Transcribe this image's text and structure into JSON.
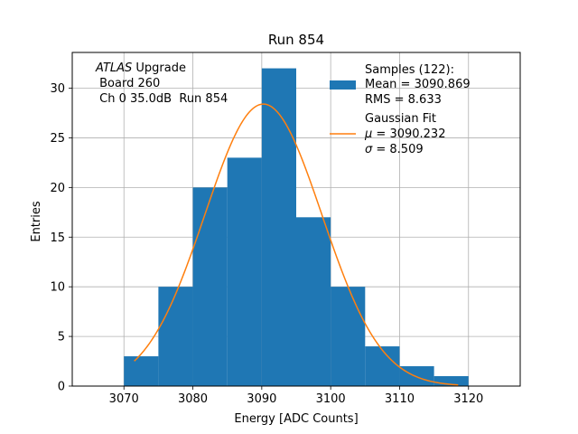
{
  "chart_data": {
    "type": "bar",
    "title": "Run 854",
    "xlabel": "Energy [ADC Counts]",
    "ylabel": "Entries",
    "xlim": [
      3062.5,
      3127.5
    ],
    "ylim": [
      0,
      33.6
    ],
    "xticks": [
      3070,
      3080,
      3090,
      3100,
      3110,
      3120
    ],
    "yticks": [
      0,
      5,
      10,
      15,
      20,
      25,
      30
    ],
    "grid": true,
    "bins": [
      {
        "x0": 3070,
        "x1": 3075,
        "count": 3
      },
      {
        "x0": 3075,
        "x1": 3080,
        "count": 10
      },
      {
        "x0": 3080,
        "x1": 3085,
        "count": 20
      },
      {
        "x0": 3085,
        "x1": 3090,
        "count": 23
      },
      {
        "x0": 3090,
        "x1": 3095,
        "count": 32
      },
      {
        "x0": 3095,
        "x1": 3100,
        "count": 17
      },
      {
        "x0": 3100,
        "x1": 3105,
        "count": 10
      },
      {
        "x0": 3105,
        "x1": 3110,
        "count": 4
      },
      {
        "x0": 3110,
        "x1": 3115,
        "count": 2
      },
      {
        "x0": 3115,
        "x1": 3120,
        "count": 1
      }
    ],
    "fit": {
      "type": "gaussian",
      "mu": 3090.232,
      "sigma": 8.509,
      "amplitude": 28.4,
      "x_range": [
        3071.5,
        3118.5
      ]
    },
    "bar_color": "#1f77b4",
    "fit_color": "#ff7f0e",
    "annotation": {
      "experiment": "ATLAS",
      "experiment_suffix": " Upgrade",
      "board": " Board 260",
      "channel": " Ch 0 35.0dB  Run 854"
    },
    "legend": {
      "position": "upper-right",
      "samples_label": "Samples (122):",
      "samples_mean": "Mean = 3090.869",
      "samples_rms": "RMS = 8.633",
      "fit_label": "Gaussian Fit",
      "fit_mu_symbol": "μ",
      "fit_mu_value": " = 3090.232",
      "fit_sigma_symbol": "σ",
      "fit_sigma_value": " = 8.509"
    }
  }
}
